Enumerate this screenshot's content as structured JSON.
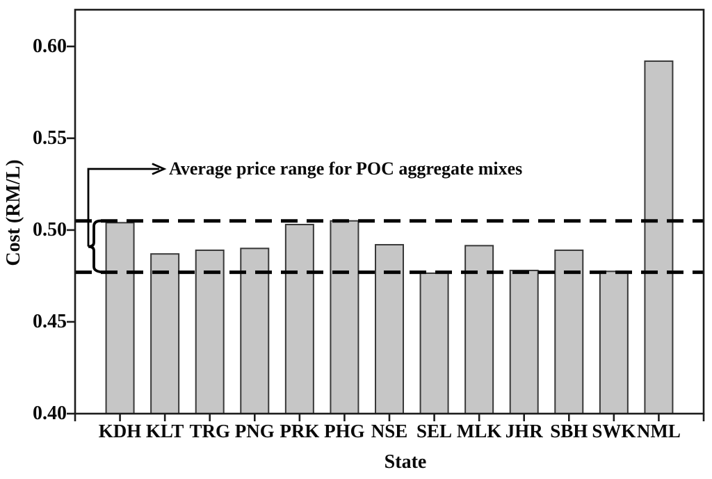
{
  "chart_data": {
    "type": "bar",
    "title": "",
    "xlabel": "State",
    "ylabel": "Cost (RM/L)",
    "categories": [
      "KDH",
      "KLT",
      "TRG",
      "PNG",
      "PRK",
      "PHG",
      "NSE",
      "SEL",
      "MLK",
      "JHR",
      "SBH",
      "SWK",
      "NML"
    ],
    "values": [
      0.504,
      0.487,
      0.489,
      0.49,
      0.503,
      0.505,
      0.492,
      0.4765,
      0.4915,
      0.478,
      0.489,
      0.4775,
      0.592
    ],
    "ylim": [
      0.4,
      0.62
    ],
    "yticks": [
      0.4,
      0.45,
      0.5,
      0.55,
      0.6
    ],
    "ytick_labels": [
      "0.40",
      "0.45",
      "0.50",
      "0.55",
      "0.60"
    ],
    "reference_lines": [
      {
        "value": 0.505,
        "style": "dashed"
      },
      {
        "value": 0.477,
        "style": "dashed"
      }
    ],
    "annotation": {
      "text": "Average price range for POC aggregate mixes",
      "points_to": "range between the two dashed reference lines"
    },
    "grid": false,
    "legend": false,
    "bar_color": "#c6c6c6",
    "bar_outline": "#383838",
    "axis_color": "#1c1c1c",
    "reference_line_color": "#050505",
    "annotation_color": "#000000"
  }
}
